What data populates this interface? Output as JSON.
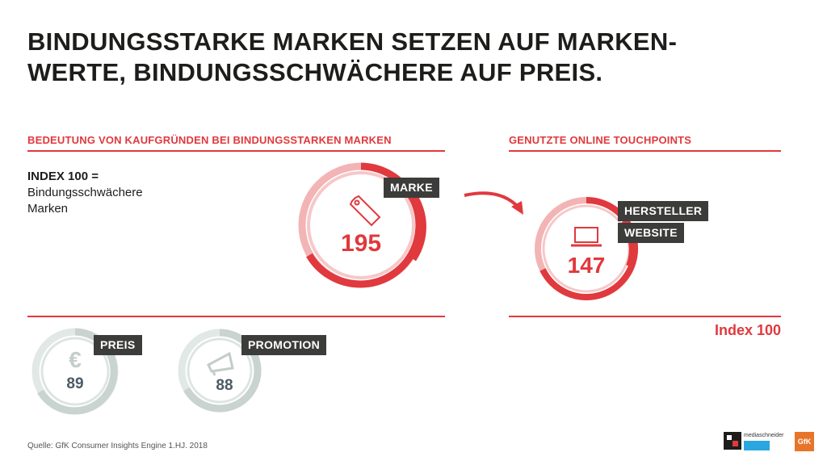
{
  "title": {
    "line1": "BINDUNGSSTARKE MARKEN SETZEN AUF MARKEN-",
    "line2": "WERTE, BINDUNGSSCHWÄCHERE AUF PREIS."
  },
  "left_section": {
    "heading": "BEDEUTUNG VON KAUFGRÜNDEN BEI BINDUNGSSTARKEN MARKEN",
    "index_label": {
      "line1": "INDEX 100 =",
      "line2": "Bindungsschwächere",
      "line3": "Marken"
    }
  },
  "right_section": {
    "heading": "GENUTZTE ONLINE TOUCHPOINTS",
    "index_note": "Index 100"
  },
  "metrics": {
    "marke": {
      "label": "MARKE",
      "value": "195",
      "icon": "price-tag-icon"
    },
    "website": {
      "label_line1": "HERSTELLER",
      "label_line2": "WEBSITE",
      "value": "147",
      "icon": "laptop-icon"
    },
    "preis": {
      "label": "PREIS",
      "value": "89",
      "icon": "euro-icon"
    },
    "promotion": {
      "label": "PROMOTION",
      "value": "88",
      "icon": "megaphone-icon"
    }
  },
  "source": "Quelle: GfK Consumer Insights Engine 1.HJ. 2018",
  "logos": {
    "mediaschneider": "mediaschneider",
    "gfk": "GfK"
  },
  "colors": {
    "accent": "#e0393e",
    "ring_light": "#f0a6a8",
    "grey_ring": "#c9d3d0",
    "tag_bg": "#3c3c3b"
  }
}
